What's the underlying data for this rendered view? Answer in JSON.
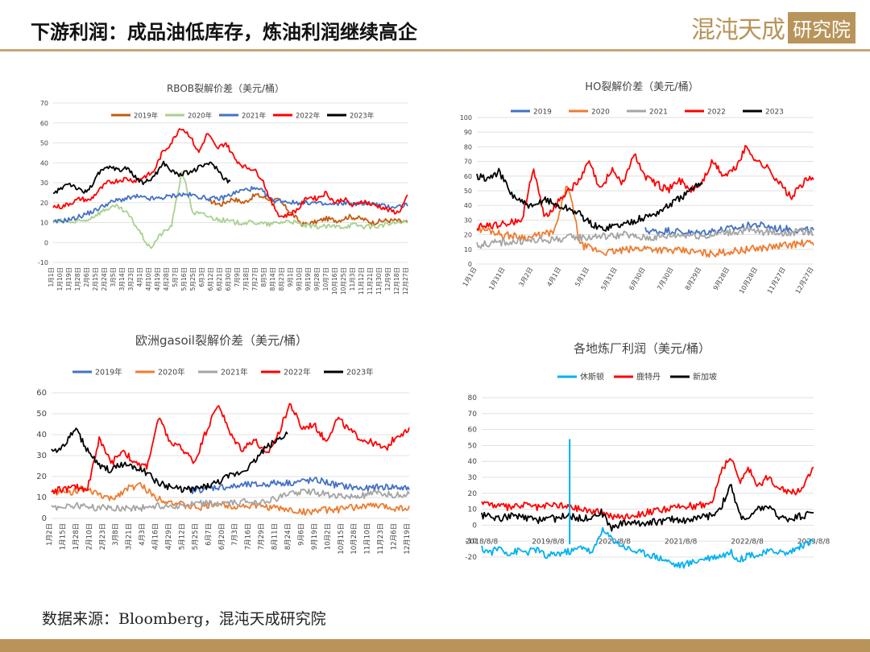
{
  "header": {
    "title": "下游利润：成品油低库存，炼油利润继续高企",
    "brand_script": "混沌天成",
    "brand_box": "研究院"
  },
  "footer": {
    "source": "数据来源：Bloomberg，混沌天成研究院"
  },
  "colors": {
    "y2019_rbob": "#c55a11",
    "y2020_rbob": "#a9d18e",
    "y2019": "#4472c4",
    "y2020": "#ed7d31",
    "y2021": "#a5a5a5",
    "y2022": "#ff0000",
    "y2023": "#000000",
    "houston": "#00b0f0",
    "rotterdam": "#ff0000",
    "singapore": "#000000",
    "accent": "#b8935a"
  },
  "chart_data": [
    {
      "id": "rbob",
      "type": "line",
      "title": "RBOB裂解价差（美元/桶）",
      "ylim": [
        -10,
        70
      ],
      "yticks": [
        -10,
        0,
        10,
        20,
        30,
        40,
        50,
        60,
        70
      ],
      "xlabels": [
        "1月1日",
        "1月10日",
        "1月19日",
        "1月28日",
        "2月6日",
        "2月15日",
        "2月24日",
        "3月5日",
        "3月14日",
        "3月23日",
        "4月1日",
        "4月10日",
        "4月19日",
        "4月28日",
        "5月7日",
        "5月16日",
        "5月25日",
        "6月3日",
        "6月12日",
        "6月21日",
        "6月30日",
        "7月9日",
        "7月18日",
        "7月27日",
        "8月5日",
        "8月14日",
        "8月23日",
        "9月1日",
        "9月10日",
        "9月19日",
        "9月28日",
        "10月7日",
        "10月16日",
        "10月25日",
        "11月3日",
        "11月12日",
        "11月21日",
        "11月30日",
        "12月9日",
        "12月18日",
        "12月27日"
      ],
      "series": [
        {
          "name": "2019年",
          "color": "#c55a11",
          "range": [
            0.44,
            1.0
          ],
          "values": [
            21,
            19,
            22,
            20,
            24,
            22,
            21,
            15,
            9,
            10,
            12,
            11,
            13,
            12,
            10,
            11,
            11,
            10
          ]
        },
        {
          "name": "2020年",
          "color": "#a9d18e",
          "range": [
            0.0,
            1.0
          ],
          "values": [
            10,
            11,
            10,
            11,
            14,
            17,
            18,
            14,
            6,
            -3,
            4,
            8,
            36,
            15,
            14,
            12,
            11,
            10,
            10,
            10,
            9,
            10,
            11,
            9,
            8,
            8,
            8,
            8,
            9,
            8,
            8,
            9,
            10,
            10
          ]
        },
        {
          "name": "2021年",
          "color": "#4472c4",
          "range": [
            0.0,
            1.0
          ],
          "values": [
            10,
            11,
            12,
            14,
            16,
            19,
            21,
            22,
            23,
            22,
            22,
            23,
            24,
            24,
            23,
            22,
            22,
            24,
            26,
            27,
            26,
            21,
            21,
            20,
            20,
            20,
            19,
            19,
            20,
            19,
            20,
            19,
            18,
            18,
            19
          ]
        },
        {
          "name": "2022年",
          "color": "#ff0000",
          "range": [
            0.0,
            1.0
          ],
          "values": [
            18,
            18,
            20,
            22,
            21,
            26,
            30,
            31,
            32,
            31,
            33,
            35,
            45,
            50,
            58,
            54,
            45,
            55,
            47,
            50,
            42,
            38,
            37,
            32,
            20,
            13,
            14,
            17,
            23,
            22,
            25,
            20,
            22,
            18,
            21,
            19,
            18,
            16,
            15,
            23
          ]
        },
        {
          "name": "2023年",
          "color": "#000000",
          "range": [
            0.0,
            0.5
          ],
          "values": [
            24,
            27,
            30,
            28,
            25,
            27,
            34,
            37,
            38,
            36,
            38,
            33,
            30,
            31,
            35,
            40,
            36,
            34,
            35,
            36,
            38,
            40,
            38,
            33,
            30
          ]
        }
      ]
    },
    {
      "id": "ho",
      "type": "line",
      "title": "HO裂解价差（美元/桶）",
      "ylim": [
        0,
        100
      ],
      "yticks": [
        0,
        10,
        20,
        30,
        40,
        50,
        60,
        70,
        80,
        90,
        100
      ],
      "xlabels": [
        "1月1日",
        "1月31日",
        "3月2日",
        "4月1日",
        "5月1日",
        "5月31日",
        "6月30日",
        "7月30日",
        "8月29日",
        "9月28日",
        "10月28日",
        "11月27日",
        "12月27日"
      ],
      "series": [
        {
          "name": "2019",
          "color": "#4472c4",
          "range": [
            0.5,
            1.0
          ],
          "values": [
            23,
            22,
            23,
            22,
            21,
            22,
            23,
            24,
            25,
            27,
            26,
            24,
            24,
            23,
            23
          ]
        },
        {
          "name": "2020",
          "color": "#ed7d31",
          "range": [
            0.0,
            1.0
          ],
          "values": [
            24,
            23,
            20,
            19,
            18,
            20,
            22,
            55,
            13,
            10,
            8,
            9,
            10,
            11,
            10,
            9,
            9,
            8,
            7,
            8,
            9,
            10,
            11,
            12,
            13,
            14,
            14
          ]
        },
        {
          "name": "2021",
          "color": "#a5a5a5",
          "range": [
            0.0,
            1.0
          ],
          "values": [
            13,
            14,
            15,
            15,
            16,
            16,
            17,
            18,
            18,
            19,
            19,
            20,
            18,
            18,
            19,
            20,
            20,
            19,
            21,
            22,
            23,
            22,
            22,
            21,
            22,
            22
          ]
        },
        {
          "name": "2022",
          "color": "#ff0000",
          "range": [
            0.0,
            1.0
          ],
          "values": [
            25,
            26,
            27,
            28,
            30,
            65,
            32,
            40,
            50,
            55,
            70,
            50,
            65,
            55,
            75,
            60,
            55,
            50,
            58,
            50,
            55,
            70,
            60,
            65,
            80,
            70,
            65,
            55,
            45,
            55,
            60
          ]
        },
        {
          "name": "2023",
          "color": "#000000",
          "range": [
            0.0,
            0.67
          ],
          "values": [
            60,
            58,
            63,
            48,
            42,
            38,
            45,
            40,
            38,
            35,
            28,
            24,
            26,
            27,
            30,
            32,
            35,
            40,
            45,
            50,
            57
          ]
        }
      ]
    },
    {
      "id": "gasoil",
      "type": "line",
      "title": "欧洲gasoil裂解价差（美元/桶）",
      "ylim": [
        0,
        60
      ],
      "yticks": [
        0,
        10,
        20,
        30,
        40,
        50,
        60
      ],
      "xlabels": [
        "1月2日",
        "1月15日",
        "1月28日",
        "2月10日",
        "2月23日",
        "3月8日",
        "3月21日",
        "4月3日",
        "4月16日",
        "4月29日",
        "5月12日",
        "5月25日",
        "6月7日",
        "6月20日",
        "7月3日",
        "7月16日",
        "7月29日",
        "8月11日",
        "8月24日",
        "9月6日",
        "9月19日",
        "10月2日",
        "10月15日",
        "10月28日",
        "11月10日",
        "11月23日",
        "12月6日",
        "12月19日"
      ],
      "series": [
        {
          "name": "2019年",
          "color": "#4472c4",
          "range": [
            0.38,
            1.0
          ],
          "values": [
            13,
            14,
            15,
            15,
            16,
            16,
            17,
            17,
            18,
            18,
            16,
            15,
            14,
            15,
            15,
            14
          ]
        },
        {
          "name": "2020年",
          "color": "#ed7d31",
          "range": [
            0.0,
            1.0
          ],
          "values": [
            13,
            12,
            14,
            12,
            9,
            14,
            16,
            10,
            8,
            6,
            5,
            7,
            6,
            6,
            6,
            5,
            4,
            3,
            4,
            4,
            5,
            6,
            6,
            5,
            5
          ]
        },
        {
          "name": "2021年",
          "color": "#a5a5a5",
          "range": [
            0.0,
            1.0
          ],
          "values": [
            5,
            6,
            6,
            5,
            5,
            5,
            5,
            6,
            6,
            6,
            7,
            7,
            7,
            8,
            8,
            9,
            12,
            13,
            12,
            11,
            10,
            11,
            12,
            11,
            12
          ]
        },
        {
          "name": "2022年",
          "color": "#ff0000",
          "range": [
            0.0,
            1.0
          ],
          "values": [
            13,
            14,
            15,
            14,
            38,
            26,
            33,
            26,
            25,
            48,
            36,
            33,
            27,
            42,
            55,
            40,
            33,
            38,
            30,
            40,
            55,
            43,
            45,
            37,
            48,
            42,
            38,
            36,
            33,
            40,
            42
          ]
        },
        {
          "name": "2023年",
          "color": "#000000",
          "range": [
            0.0,
            0.66
          ],
          "values": [
            32,
            34,
            43,
            33,
            25,
            23,
            26,
            25,
            22,
            17,
            15,
            14,
            14,
            15,
            17,
            20,
            22,
            26,
            33,
            37,
            41
          ]
        }
      ]
    },
    {
      "id": "refinery",
      "type": "line",
      "title": "各地炼厂利润（美元/桶）",
      "ylim": [
        -20,
        80
      ],
      "yticks": [
        -20,
        -10,
        0,
        10,
        20,
        30,
        40,
        50,
        60,
        70,
        80
      ],
      "xlabels": [
        "2018/8/8",
        "2019/8/8",
        "2020/8/8",
        "2021/8/8",
        "2022/8/8",
        "2023/8/8"
      ],
      "series": [
        {
          "name": "休斯顿",
          "color": "#00b0f0",
          "range": [
            0.0,
            1.0
          ],
          "values": [
            -15,
            -17,
            -14,
            -18,
            -16,
            -17,
            -15,
            -20,
            -18,
            -17,
            -16,
            -13,
            -18,
            -3,
            -8,
            -12,
            -15,
            -17,
            -18,
            -20,
            -22,
            -25,
            -25,
            -23,
            -21,
            -20,
            -19,
            -17,
            -22,
            -18,
            -19,
            -17,
            -16,
            -18,
            -15,
            -12,
            -10
          ]
        },
        {
          "name": "鹿特丹",
          "color": "#ff0000",
          "range": [
            0.0,
            1.0
          ],
          "values": [
            15,
            13,
            12,
            11,
            12,
            13,
            11,
            12,
            13,
            12,
            11,
            10,
            9,
            8,
            6,
            5,
            6,
            7,
            8,
            9,
            10,
            11,
            12,
            12,
            13,
            14,
            35,
            42,
            28,
            35,
            25,
            30,
            25,
            22,
            20,
            26,
            35
          ]
        },
        {
          "name": "新加坡",
          "color": "#000000",
          "range": [
            0.0,
            1.0
          ],
          "values": [
            6,
            5,
            4,
            6,
            5,
            4,
            3,
            5,
            4,
            6,
            5,
            4,
            6,
            8,
            -2,
            1,
            2,
            1,
            2,
            2,
            3,
            4,
            3,
            4,
            5,
            6,
            12,
            25,
            6,
            4,
            10,
            12,
            6,
            4,
            5,
            6,
            9
          ]
        }
      ]
    }
  ]
}
